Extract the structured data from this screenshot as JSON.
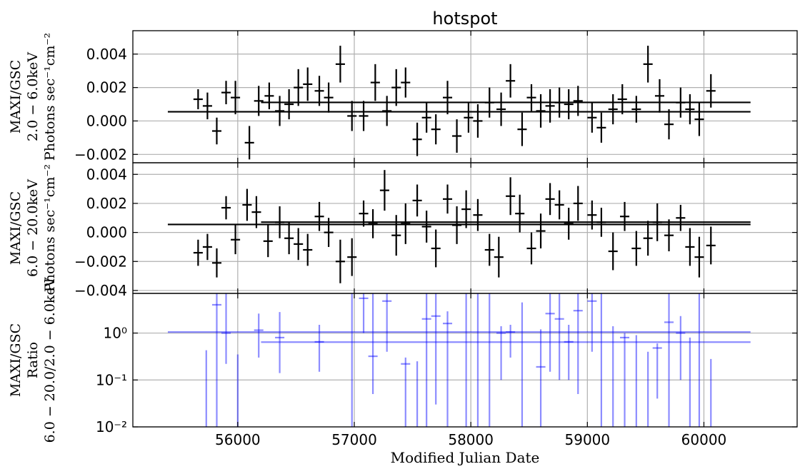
{
  "chart_data": {
    "title": "hotspot",
    "xlabel": "Modified Julian Date",
    "xlim": [
      55100,
      60800
    ],
    "x_ticks": [
      56000,
      57000,
      58000,
      59000,
      60000
    ],
    "x_tick_labels": [
      "56000",
      "57000",
      "58000",
      "59000",
      "60000"
    ],
    "grid": true,
    "panels": [
      {
        "type": "scatter",
        "name": "soft",
        "ylabel_lines": [
          "MAXI/GSC",
          "2.0 − 6.0keV",
          "Photons sec⁻¹cm⁻²"
        ],
        "ylim": [
          -0.0025,
          0.0054
        ],
        "y_ticks": [
          -0.002,
          0.0,
          0.002,
          0.004
        ],
        "y_tick_labels": [
          "−0.002",
          "0.000",
          "0.002",
          "0.004"
        ],
        "color": "#000000",
        "x_half_width": 40,
        "points": [
          [
            55660,
            0.0013,
            0.0006
          ],
          [
            55740,
            0.0009,
            0.0008
          ],
          [
            55820,
            -0.0006,
            0.0008
          ],
          [
            55900,
            0.0017,
            0.0007
          ],
          [
            55980,
            0.0014,
            0.001
          ],
          [
            56100,
            -0.0013,
            0.001
          ],
          [
            56180,
            0.0012,
            0.0009
          ],
          [
            56270,
            0.0015,
            0.0008
          ],
          [
            56360,
            0.0006,
            0.0009
          ],
          [
            56440,
            0.001,
            0.0009
          ],
          [
            56520,
            0.002,
            0.0011
          ],
          [
            56600,
            0.0022,
            0.001
          ],
          [
            56700,
            0.0018,
            0.0009
          ],
          [
            56780,
            0.0014,
            0.0009
          ],
          [
            56880,
            0.0034,
            0.0011
          ],
          [
            56980,
            0.0003,
            0.0009
          ],
          [
            57080,
            0.0003,
            0.0009
          ],
          [
            57180,
            0.0023,
            0.0011
          ],
          [
            57280,
            0.0006,
            0.0009
          ],
          [
            57360,
            0.002,
            0.0011
          ],
          [
            57440,
            0.0023,
            0.0009
          ],
          [
            57540,
            -0.0011,
            0.001
          ],
          [
            57620,
            0.0002,
            0.0009
          ],
          [
            57700,
            -0.0005,
            0.0009
          ],
          [
            57800,
            0.0014,
            0.001
          ],
          [
            57880,
            -0.0009,
            0.001
          ],
          [
            57980,
            0.0002,
            0.0009
          ],
          [
            58060,
            -0.0,
            0.001
          ],
          [
            58160,
            0.0011,
            0.0009
          ],
          [
            58260,
            0.0007,
            0.001
          ],
          [
            58340,
            0.0024,
            0.001
          ],
          [
            58440,
            -0.0005,
            0.001
          ],
          [
            58520,
            0.0014,
            0.0008
          ],
          [
            58600,
            0.0006,
            0.001
          ],
          [
            58680,
            0.0009,
            0.001
          ],
          [
            58760,
            0.0011,
            0.0009
          ],
          [
            58840,
            0.001,
            0.0009
          ],
          [
            58920,
            0.0012,
            0.0009
          ],
          [
            59040,
            0.0002,
            0.0009
          ],
          [
            59120,
            -0.0004,
            0.0009
          ],
          [
            59220,
            0.0007,
            0.0009
          ],
          [
            59300,
            0.0013,
            0.0009
          ],
          [
            59420,
            0.0007,
            0.0008
          ],
          [
            59520,
            0.0034,
            0.0011
          ],
          [
            59620,
            0.0015,
            0.001
          ],
          [
            59700,
            -0.0002,
            0.0009
          ],
          [
            59800,
            0.0011,
            0.0009
          ],
          [
            59880,
            0.0007,
            0.0009
          ],
          [
            59960,
            0.0001,
            0.001
          ],
          [
            60060,
            0.0018,
            0.001
          ]
        ],
        "ref_lines": [
          {
            "x0": 55400,
            "x1": 60400,
            "y": 0.00055
          },
          {
            "x0": 56200,
            "x1": 60400,
            "y": 0.00111
          }
        ]
      },
      {
        "type": "scatter",
        "name": "hard",
        "ylabel_lines": [
          "MAXI/GSC",
          "6.0 − 20.0keV",
          "Photons sec⁻¹cm⁻²"
        ],
        "ylim": [
          -0.0042,
          0.0048
        ],
        "y_ticks": [
          -0.004,
          -0.002,
          0.0,
          0.002,
          0.004
        ],
        "y_tick_labels": [
          "−0.004",
          "−0.002",
          "0.000",
          "0.002",
          "0.004"
        ],
        "color": "#000000",
        "x_half_width": 40,
        "points": [
          [
            55660,
            -0.0014,
            0.0009
          ],
          [
            55740,
            -0.001,
            0.0009
          ],
          [
            55820,
            -0.0021,
            0.001
          ],
          [
            55900,
            0.0017,
            0.0008
          ],
          [
            55980,
            -0.0005,
            0.001
          ],
          [
            56080,
            0.0019,
            0.0011
          ],
          [
            56160,
            0.0014,
            0.0011
          ],
          [
            56260,
            -0.0006,
            0.0011
          ],
          [
            56360,
            0.0007,
            0.0011
          ],
          [
            56440,
            -0.0004,
            0.0011
          ],
          [
            56520,
            -0.0008,
            0.0011
          ],
          [
            56600,
            -0.0012,
            0.0011
          ],
          [
            56700,
            0.0011,
            0.001
          ],
          [
            56780,
            -0.0,
            0.001
          ],
          [
            56880,
            -0.002,
            0.0015
          ],
          [
            56980,
            -0.0017,
            0.0013
          ],
          [
            57080,
            0.0013,
            0.0009
          ],
          [
            57160,
            0.0006,
            0.001
          ],
          [
            57260,
            0.0029,
            0.0014
          ],
          [
            57360,
            -0.0002,
            0.0014
          ],
          [
            57440,
            0.0006,
            0.0014
          ],
          [
            57540,
            0.0022,
            0.0011
          ],
          [
            57620,
            0.0004,
            0.0011
          ],
          [
            57700,
            -0.0011,
            0.0013
          ],
          [
            57800,
            0.0023,
            0.001
          ],
          [
            57880,
            0.0005,
            0.0013
          ],
          [
            57960,
            0.0016,
            0.0013
          ],
          [
            58060,
            0.0012,
            0.0011
          ],
          [
            58160,
            -0.0012,
            0.0011
          ],
          [
            58240,
            -0.0017,
            0.0014
          ],
          [
            58340,
            0.0025,
            0.0013
          ],
          [
            58420,
            0.0013,
            0.0013
          ],
          [
            58520,
            -0.0011,
            0.0011
          ],
          [
            58600,
            0.0001,
            0.0012
          ],
          [
            58680,
            0.0023,
            0.0011
          ],
          [
            58760,
            0.0019,
            0.001
          ],
          [
            58840,
            0.0006,
            0.0011
          ],
          [
            58920,
            0.002,
            0.0012
          ],
          [
            59040,
            0.0012,
            0.001
          ],
          [
            59120,
            0.0007,
            0.001
          ],
          [
            59220,
            -0.0013,
            0.0013
          ],
          [
            59320,
            0.0011,
            0.001
          ],
          [
            59420,
            -0.0011,
            0.0012
          ],
          [
            59520,
            -0.0004,
            0.0012
          ],
          [
            59600,
            0.0007,
            0.0013
          ],
          [
            59700,
            -0.0002,
            0.0011
          ],
          [
            59800,
            0.001,
            0.0009
          ],
          [
            59880,
            -0.001,
            0.0013
          ],
          [
            59960,
            -0.0017,
            0.0014
          ],
          [
            60060,
            -0.0009,
            0.0013
          ]
        ],
        "ref_lines": [
          {
            "x0": 55400,
            "x1": 60400,
            "y": 0.00055
          },
          {
            "x0": 56200,
            "x1": 60400,
            "y": 0.00071
          }
        ]
      },
      {
        "type": "scatter",
        "name": "ratio",
        "ylabel_lines": [
          "MAXI/GSC",
          "Ratio",
          "6.0 − 20.0/2.0 − 6.0keV"
        ],
        "yscale": "log",
        "ylim": [
          0.01,
          7
        ],
        "y_ticks": [
          0.01,
          0.1,
          1
        ],
        "y_tick_labels": [
          "10⁻²",
          "10⁻¹",
          "10⁰"
        ],
        "color": "#0000ff",
        "x_half_width": 40,
        "points": [
          [
            55730,
            null,
            0.01,
            0.43
          ],
          [
            55820,
            4.0,
            0.01,
            7
          ],
          [
            55900,
            1.0,
            0.22,
            7
          ],
          [
            56000,
            null,
            0.01,
            0.35
          ],
          [
            56180,
            1.15,
            0.3,
            2.6
          ],
          [
            56360,
            0.8,
            0.14,
            2.8
          ],
          [
            56700,
            0.65,
            0.15,
            1.5
          ],
          [
            56980,
            null,
            0.01,
            7
          ],
          [
            57080,
            5.5,
            1.0,
            7
          ],
          [
            57160,
            0.32,
            0.05,
            7
          ],
          [
            57280,
            4.8,
            0.4,
            7
          ],
          [
            57440,
            0.22,
            0.01,
            0.3
          ],
          [
            57540,
            null,
            0.01,
            0.25
          ],
          [
            57620,
            2.0,
            0.01,
            7
          ],
          [
            57700,
            2.3,
            0.03,
            7
          ],
          [
            57800,
            1.6,
            0.01,
            2.9
          ],
          [
            57960,
            null,
            0.01,
            7
          ],
          [
            58060,
            null,
            0.01,
            7
          ],
          [
            58160,
            null,
            0.01,
            7
          ],
          [
            58260,
            1.0,
            0.1,
            1.4
          ],
          [
            58340,
            1.05,
            0.3,
            1.5
          ],
          [
            58440,
            null,
            0.01,
            4.5
          ],
          [
            58600,
            0.19,
            0.01,
            1.2
          ],
          [
            58680,
            2.6,
            0.15,
            7
          ],
          [
            58760,
            2.0,
            0.1,
            7
          ],
          [
            58840,
            0.65,
            0.1,
            1.5
          ],
          [
            58920,
            3.0,
            0.05,
            7
          ],
          [
            59040,
            4.8,
            0.4,
            7
          ],
          [
            59120,
            null,
            0.01,
            7
          ],
          [
            59220,
            null,
            0.01,
            1.4
          ],
          [
            59320,
            0.8,
            0.01,
            1.0
          ],
          [
            59420,
            null,
            0.01,
            0.9
          ],
          [
            59520,
            null,
            0.01,
            0.4
          ],
          [
            59600,
            0.48,
            0.04,
            0.6
          ],
          [
            59700,
            1.7,
            0.01,
            7
          ],
          [
            59800,
            1.0,
            0.1,
            2.3
          ],
          [
            59880,
            null,
            0.01,
            0.8
          ],
          [
            59960,
            null,
            0.01,
            7
          ],
          [
            60060,
            null,
            0.01,
            0.28
          ]
        ],
        "ref_lines": [
          {
            "x0": 55400,
            "x1": 60400,
            "y": 1.05
          },
          {
            "x0": 56200,
            "x1": 60400,
            "y": 0.64
          }
        ]
      }
    ]
  }
}
